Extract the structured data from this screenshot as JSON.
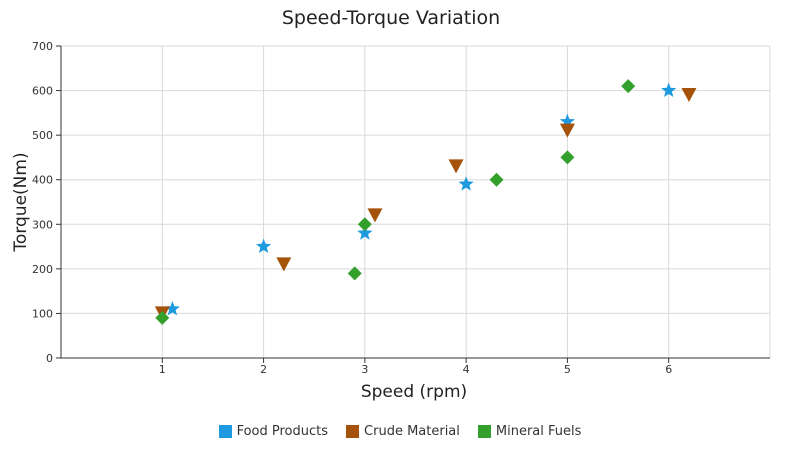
{
  "chart_data": {
    "type": "scatter",
    "title": "Speed-Torque Variation",
    "xlabel": "Speed (rpm)",
    "ylabel": "Torque(Nm)",
    "xlim": [
      0,
      7
    ],
    "ylim": [
      0,
      700
    ],
    "xticks": [
      1,
      2,
      3,
      4,
      5,
      6
    ],
    "yticks": [
      0,
      100,
      200,
      300,
      400,
      500,
      600,
      700
    ],
    "grid": true,
    "legend_position": "bottom",
    "series": [
      {
        "name": "Food Products",
        "color": "#1e9be0",
        "marker": "star",
        "points": [
          [
            1.1,
            110
          ],
          [
            2.0,
            250
          ],
          [
            3.0,
            280
          ],
          [
            4.0,
            390
          ],
          [
            5.0,
            530
          ],
          [
            6.0,
            600
          ]
        ]
      },
      {
        "name": "Crude Material",
        "color": "#a5530a",
        "marker": "triangle-down",
        "points": [
          [
            1.0,
            100
          ],
          [
            2.2,
            210
          ],
          [
            3.1,
            320
          ],
          [
            3.9,
            430
          ],
          [
            5.0,
            510
          ],
          [
            6.2,
            590
          ]
        ]
      },
      {
        "name": "Mineral Fuels",
        "color": "#33a02c",
        "marker": "diamond",
        "points": [
          [
            1.0,
            90
          ],
          [
            2.9,
            190
          ],
          [
            3.0,
            300
          ],
          [
            4.3,
            400
          ],
          [
            5.0,
            450
          ],
          [
            5.6,
            610
          ]
        ]
      }
    ]
  }
}
